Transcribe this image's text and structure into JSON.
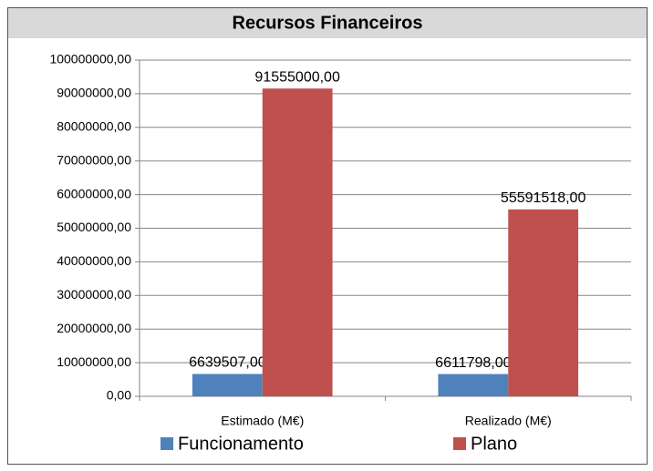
{
  "chart_data": {
    "type": "bar",
    "title": "Recursos Financeiros",
    "categories": [
      "Estimado (M€)",
      "Realizado (M€)"
    ],
    "series": [
      {
        "name": "Funcionamento",
        "color": "#4f81bd",
        "values": [
          6639507,
          6611798
        ],
        "value_labels": [
          "6639507,00",
          "6611798,00"
        ]
      },
      {
        "name": "Plano",
        "color": "#c0504d",
        "values": [
          91555000,
          55591518
        ],
        "value_labels": [
          "91555000,00",
          "55591518,00"
        ]
      }
    ],
    "ylim": [
      0,
      100000000
    ],
    "yticks": [
      {
        "value": 0,
        "label": "0,00"
      },
      {
        "value": 10000000,
        "label": "10000000,00"
      },
      {
        "value": 20000000,
        "label": "20000000,00"
      },
      {
        "value": 30000000,
        "label": "30000000,00"
      },
      {
        "value": 40000000,
        "label": "40000000,00"
      },
      {
        "value": 50000000,
        "label": "50000000,00"
      },
      {
        "value": 60000000,
        "label": "60000000,00"
      },
      {
        "value": 70000000,
        "label": "70000000,00"
      },
      {
        "value": 80000000,
        "label": "80000000,00"
      },
      {
        "value": 90000000,
        "label": "90000000,00"
      },
      {
        "value": 100000000,
        "label": "100000000,00"
      }
    ],
    "grid": true,
    "legend": "bottom"
  }
}
